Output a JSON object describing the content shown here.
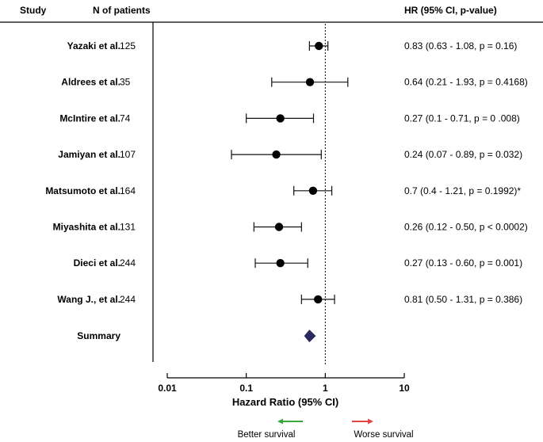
{
  "headers": {
    "study": "Study",
    "n_patients": "N of patients",
    "hr": "HR (95% CI, p-value)"
  },
  "chart_data": {
    "type": "forest",
    "x_scale": "log10",
    "xlim": [
      0.01,
      10
    ],
    "xticks": [
      0.01,
      0.1,
      1,
      10
    ],
    "xtick_labels": [
      "0.01",
      "0.1",
      "1",
      "10"
    ],
    "xlabel": "Hazard Ratio (95% CI)",
    "reference_line": 1,
    "studies": [
      {
        "name": "Yazaki et al.",
        "n": "125",
        "hr": 0.83,
        "lo": 0.63,
        "hi": 1.08,
        "label": "0.83 (0.63 - 1.08, p = 0.16)"
      },
      {
        "name": "Aldrees et al.",
        "n": "35",
        "hr": 0.64,
        "lo": 0.21,
        "hi": 1.93,
        "label": "0.64 (0.21 - 1.93, p = 0.4168)"
      },
      {
        "name": "McIntire et al.",
        "n": "74",
        "hr": 0.27,
        "lo": 0.1,
        "hi": 0.71,
        "label": "0.27 (0.1 - 0.71, p = 0 .008)"
      },
      {
        "name": "Jamiyan et al.",
        "n": "107",
        "hr": 0.24,
        "lo": 0.065,
        "hi": 0.89,
        "label": "0.24 (0.07 - 0.89, p = 0.032)"
      },
      {
        "name": "Matsumoto et al.",
        "n": "164",
        "hr": 0.7,
        "lo": 0.4,
        "hi": 1.21,
        "label": "0.7 (0.4 - 1.21, p = 0.1992)*"
      },
      {
        "name": "Miyashita et al.",
        "n": "131",
        "hr": 0.26,
        "lo": 0.125,
        "hi": 0.5,
        "label": "0.26 (0.12 - 0.50, p < 0.0002)"
      },
      {
        "name": "Dieci et al.",
        "n": "244",
        "hr": 0.27,
        "lo": 0.13,
        "hi": 0.6,
        "label": "0.27 (0.13 - 0.60, p = 0.001)"
      },
      {
        "name": "Wang J., et al.",
        "n": "244",
        "hr": 0.81,
        "lo": 0.5,
        "hi": 1.31,
        "label": "0.81 (0.50 - 1.31, p = 0.386)"
      }
    ],
    "summary": {
      "name": "Summary",
      "hr": 0.63,
      "lo": 0.54,
      "hi": 0.76
    },
    "legend": {
      "better": "Better survival",
      "worse": "Worse survival"
    }
  },
  "colors": {
    "text": "#111111",
    "summary_diamond": "#2b2a5e",
    "better_arrow": "#3aa83a",
    "worse_arrow": "#e04545"
  }
}
